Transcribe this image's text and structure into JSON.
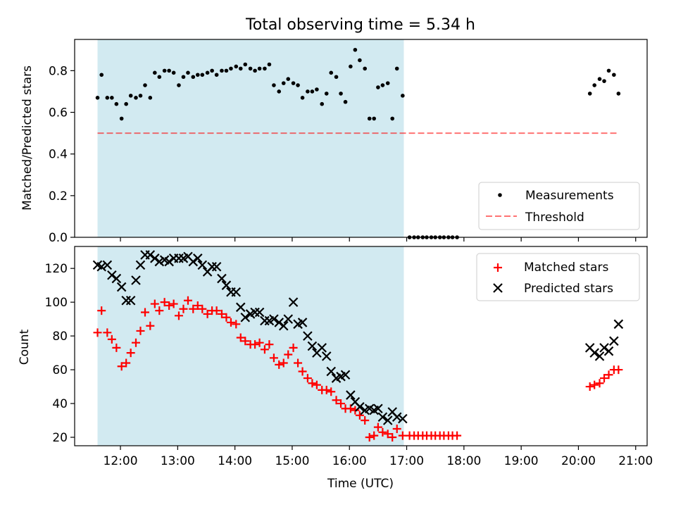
{
  "title": "Total observing time = 5.34 h",
  "colors": {
    "shade": "#add8e6",
    "measurement": "#000000",
    "threshold": "#ff0000",
    "matched": "#ff0000",
    "predicted": "#000000"
  },
  "chart_data": [
    {
      "type": "scatter",
      "ylabel": "Matched/Predicted stars",
      "ylim": [
        0,
        0.95
      ],
      "yticks": [
        "0.0",
        "0.2",
        "0.4",
        "0.6",
        "0.8"
      ],
      "ytick_values": [
        0,
        0.2,
        0.4,
        0.6,
        0.8
      ],
      "xlim": [
        11.2,
        21.2
      ],
      "shaded_interval": [
        11.6,
        16.95
      ],
      "legend_position": "lower-right",
      "threshold": {
        "name": "Threshold",
        "value": 0.5,
        "x_range": [
          11.6,
          20.7
        ]
      },
      "series": [
        {
          "name": "Measurements",
          "points": [
            [
              11.6,
              0.67
            ],
            [
              11.67,
              0.78
            ],
            [
              11.77,
              0.67
            ],
            [
              11.85,
              0.67
            ],
            [
              11.93,
              0.64
            ],
            [
              12.02,
              0.57
            ],
            [
              12.1,
              0.64
            ],
            [
              12.18,
              0.68
            ],
            [
              12.27,
              0.67
            ],
            [
              12.35,
              0.68
            ],
            [
              12.43,
              0.73
            ],
            [
              12.52,
              0.67
            ],
            [
              12.6,
              0.79
            ],
            [
              12.68,
              0.77
            ],
            [
              12.77,
              0.8
            ],
            [
              12.85,
              0.8
            ],
            [
              12.93,
              0.79
            ],
            [
              13.02,
              0.73
            ],
            [
              13.1,
              0.77
            ],
            [
              13.18,
              0.79
            ],
            [
              13.27,
              0.77
            ],
            [
              13.35,
              0.78
            ],
            [
              13.43,
              0.78
            ],
            [
              13.52,
              0.79
            ],
            [
              13.6,
              0.8
            ],
            [
              13.68,
              0.78
            ],
            [
              13.77,
              0.8
            ],
            [
              13.85,
              0.8
            ],
            [
              13.93,
              0.81
            ],
            [
              14.02,
              0.82
            ],
            [
              14.1,
              0.81
            ],
            [
              14.18,
              0.83
            ],
            [
              14.27,
              0.81
            ],
            [
              14.35,
              0.8
            ],
            [
              14.43,
              0.81
            ],
            [
              14.52,
              0.81
            ],
            [
              14.6,
              0.83
            ],
            [
              14.68,
              0.73
            ],
            [
              14.77,
              0.7
            ],
            [
              14.85,
              0.74
            ],
            [
              14.93,
              0.76
            ],
            [
              15.02,
              0.74
            ],
            [
              15.1,
              0.73
            ],
            [
              15.18,
              0.67
            ],
            [
              15.27,
              0.7
            ],
            [
              15.35,
              0.7
            ],
            [
              15.43,
              0.71
            ],
            [
              15.52,
              0.64
            ],
            [
              15.6,
              0.69
            ],
            [
              15.68,
              0.79
            ],
            [
              15.77,
              0.77
            ],
            [
              15.85,
              0.69
            ],
            [
              15.93,
              0.65
            ],
            [
              16.02,
              0.82
            ],
            [
              16.1,
              0.9
            ],
            [
              16.18,
              0.85
            ],
            [
              16.27,
              0.81
            ],
            [
              16.35,
              0.57
            ],
            [
              16.43,
              0.57
            ],
            [
              16.5,
              0.72
            ],
            [
              16.58,
              0.73
            ],
            [
              16.67,
              0.74
            ],
            [
              16.75,
              0.57
            ],
            [
              16.83,
              0.81
            ],
            [
              16.93,
              0.68
            ],
            [
              17.05,
              0
            ],
            [
              17.13,
              0
            ],
            [
              17.2,
              0
            ],
            [
              17.28,
              0
            ],
            [
              17.35,
              0
            ],
            [
              17.43,
              0
            ],
            [
              17.5,
              0
            ],
            [
              17.58,
              0
            ],
            [
              17.65,
              0
            ],
            [
              17.73,
              0
            ],
            [
              17.8,
              0
            ],
            [
              17.88,
              0
            ],
            [
              20.2,
              0.69
            ],
            [
              20.28,
              0.73
            ],
            [
              20.37,
              0.76
            ],
            [
              20.45,
              0.75
            ],
            [
              20.53,
              0.8
            ],
            [
              20.62,
              0.78
            ],
            [
              20.7,
              0.69
            ]
          ]
        }
      ]
    },
    {
      "type": "scatter",
      "xlabel": "Time (UTC)",
      "ylabel": "Count",
      "ylim": [
        15,
        133
      ],
      "yticks": [
        "20",
        "40",
        "60",
        "80",
        "100",
        "120"
      ],
      "ytick_values": [
        20,
        40,
        60,
        80,
        100,
        120
      ],
      "xlim": [
        11.2,
        21.2
      ],
      "xticks": [
        "12:00",
        "13:00",
        "14:00",
        "15:00",
        "16:00",
        "17:00",
        "18:00",
        "19:00",
        "20:00",
        "21:00"
      ],
      "xtick_values": [
        12,
        13,
        14,
        15,
        16,
        17,
        18,
        19,
        20,
        21
      ],
      "shaded_interval": [
        11.6,
        16.95
      ],
      "legend_position": "upper-right",
      "series": [
        {
          "name": "Matched stars",
          "marker": "plus",
          "points": [
            [
              11.6,
              82
            ],
            [
              11.67,
              95
            ],
            [
              11.77,
              82
            ],
            [
              11.85,
              78
            ],
            [
              11.93,
              73
            ],
            [
              12.02,
              62
            ],
            [
              12.1,
              64
            ],
            [
              12.18,
              70
            ],
            [
              12.27,
              76
            ],
            [
              12.35,
              83
            ],
            [
              12.43,
              94
            ],
            [
              12.52,
              86
            ],
            [
              12.6,
              99
            ],
            [
              12.68,
              95
            ],
            [
              12.77,
              100
            ],
            [
              12.85,
              98
            ],
            [
              12.93,
              99
            ],
            [
              13.02,
              92
            ],
            [
              13.1,
              96
            ],
            [
              13.18,
              101
            ],
            [
              13.27,
              96
            ],
            [
              13.35,
              98
            ],
            [
              13.43,
              96
            ],
            [
              13.52,
              93
            ],
            [
              13.6,
              95
            ],
            [
              13.68,
              95
            ],
            [
              13.77,
              93
            ],
            [
              13.85,
              91
            ],
            [
              13.93,
              88
            ],
            [
              14.02,
              87
            ],
            [
              14.1,
              79
            ],
            [
              14.18,
              77
            ],
            [
              14.27,
              75
            ],
            [
              14.35,
              75
            ],
            [
              14.43,
              76
            ],
            [
              14.52,
              72
            ],
            [
              14.6,
              75
            ],
            [
              14.68,
              67
            ],
            [
              14.77,
              63
            ],
            [
              14.85,
              64
            ],
            [
              14.93,
              69
            ],
            [
              15.02,
              73
            ],
            [
              15.1,
              64
            ],
            [
              15.18,
              59
            ],
            [
              15.27,
              55
            ],
            [
              15.35,
              52
            ],
            [
              15.43,
              51
            ],
            [
              15.52,
              48
            ],
            [
              15.6,
              48
            ],
            [
              15.68,
              47
            ],
            [
              15.77,
              42
            ],
            [
              15.85,
              40
            ],
            [
              15.93,
              37
            ],
            [
              16.02,
              37
            ],
            [
              16.1,
              36
            ],
            [
              16.18,
              33
            ],
            [
              16.27,
              30
            ],
            [
              16.35,
              20
            ],
            [
              16.43,
              21
            ],
            [
              16.5,
              26
            ],
            [
              16.58,
              23
            ],
            [
              16.67,
              22
            ],
            [
              16.75,
              20
            ],
            [
              16.83,
              25
            ],
            [
              16.93,
              21
            ],
            [
              17.05,
              21
            ],
            [
              17.13,
              21
            ],
            [
              17.2,
              21
            ],
            [
              17.28,
              21
            ],
            [
              17.35,
              21
            ],
            [
              17.43,
              21
            ],
            [
              17.5,
              21
            ],
            [
              17.58,
              21
            ],
            [
              17.65,
              21
            ],
            [
              17.73,
              21
            ],
            [
              17.8,
              21
            ],
            [
              17.88,
              21
            ],
            [
              20.2,
              50
            ],
            [
              20.28,
              51
            ],
            [
              20.37,
              52
            ],
            [
              20.45,
              55
            ],
            [
              20.53,
              57
            ],
            [
              20.62,
              60
            ],
            [
              20.7,
              60
            ]
          ]
        },
        {
          "name": "Predicted stars",
          "marker": "x",
          "points": [
            [
              11.6,
              122
            ],
            [
              11.67,
              121
            ],
            [
              11.77,
              122
            ],
            [
              11.85,
              116
            ],
            [
              11.93,
              114
            ],
            [
              12.02,
              109
            ],
            [
              12.1,
              101
            ],
            [
              12.18,
              101
            ],
            [
              12.27,
              113
            ],
            [
              12.35,
              122
            ],
            [
              12.43,
              128
            ],
            [
              12.52,
              128
            ],
            [
              12.6,
              126
            ],
            [
              12.68,
              124
            ],
            [
              12.77,
              125
            ],
            [
              12.85,
              124
            ],
            [
              12.93,
              126
            ],
            [
              13.02,
              126
            ],
            [
              13.1,
              126
            ],
            [
              13.18,
              127
            ],
            [
              13.27,
              124
            ],
            [
              13.35,
              126
            ],
            [
              13.43,
              122
            ],
            [
              13.52,
              118
            ],
            [
              13.6,
              121
            ],
            [
              13.68,
              121
            ],
            [
              13.77,
              114
            ],
            [
              13.85,
              110
            ],
            [
              13.93,
              106
            ],
            [
              14.02,
              106
            ],
            [
              14.1,
              97
            ],
            [
              14.18,
              91
            ],
            [
              14.27,
              93
            ],
            [
              14.35,
              94
            ],
            [
              14.43,
              94
            ],
            [
              14.52,
              89
            ],
            [
              14.6,
              89
            ],
            [
              14.68,
              90
            ],
            [
              14.77,
              88
            ],
            [
              14.85,
              86
            ],
            [
              14.93,
              90
            ],
            [
              15.02,
              100
            ],
            [
              15.1,
              87
            ],
            [
              15.18,
              88
            ],
            [
              15.27,
              80
            ],
            [
              15.35,
              74
            ],
            [
              15.43,
              70
            ],
            [
              15.52,
              73
            ],
            [
              15.6,
              68
            ],
            [
              15.68,
              59
            ],
            [
              15.77,
              55
            ],
            [
              15.85,
              56
            ],
            [
              15.93,
              57
            ],
            [
              16.02,
              45
            ],
            [
              16.1,
              41
            ],
            [
              16.18,
              38
            ],
            [
              16.27,
              36
            ],
            [
              16.35,
              37
            ],
            [
              16.43,
              36
            ],
            [
              16.5,
              37
            ],
            [
              16.58,
              32
            ],
            [
              16.67,
              30
            ],
            [
              16.75,
              35
            ],
            [
              16.83,
              32
            ],
            [
              16.93,
              31
            ],
            [
              20.2,
              73
            ],
            [
              20.28,
              70
            ],
            [
              20.37,
              68
            ],
            [
              20.45,
              73
            ],
            [
              20.53,
              71
            ],
            [
              20.62,
              77
            ],
            [
              20.7,
              87
            ]
          ]
        }
      ]
    }
  ]
}
